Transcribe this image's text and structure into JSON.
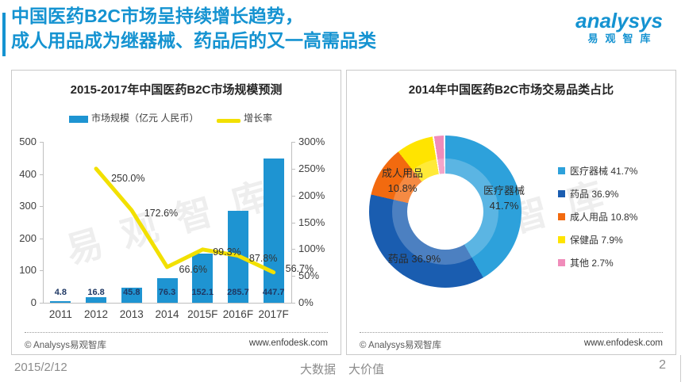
{
  "slide": {
    "header": {
      "title_line1": "中国医药B2C市场呈持续增长趋势，",
      "title_line2": "成人用品成为继器械、药品后的又一高需品类",
      "logo": {
        "brand": "analysys",
        "tagline": "易观智库"
      }
    },
    "footer": {
      "date": "2015/2/12",
      "slogan_left": "大数据",
      "slogan_right": "大价值",
      "page_number": "2"
    }
  },
  "left_card": {
    "watermark": "易观智库",
    "copyright": "© Analysys易观智库",
    "website": "www.enfodesk.com"
  },
  "right_card": {
    "watermark": "易观智库",
    "copyright": "© Analysys易观智库",
    "website": "www.enfodesk.com"
  },
  "colors": {
    "accent_blue": "#1593D1",
    "bar_blue": "#1E94D2",
    "line_yellow": "#F2E000",
    "pie_light_blue": "#2DA1DB",
    "pie_dark_blue": "#1A5DB0",
    "pie_orange": "#F26A0F",
    "pie_yellow": "#FFE400",
    "pie_pink": "#F08CBA",
    "axis_gray": "#BFBFBF"
  },
  "chart_data": [
    {
      "type": "bar",
      "title": "2015-2017年中国医药B2C市场规模预测",
      "categories": [
        "2011",
        "2012",
        "2013",
        "2014",
        "2015F",
        "2016F",
        "2017F"
      ],
      "series": [
        {
          "name": "市场规模（亿元 人民币）",
          "type": "bar",
          "axis": "left",
          "color": "#1E94D2",
          "values": [
            4.8,
            16.8,
            45.8,
            76.3,
            152.1,
            285.7,
            447.7
          ]
        },
        {
          "name": "增长率",
          "type": "line",
          "axis": "right",
          "color": "#F2E000",
          "unit": "%",
          "values": [
            null,
            250.0,
            172.6,
            66.6,
            99.3,
            87.8,
            56.7
          ]
        }
      ],
      "y_left": {
        "min": 0,
        "max": 500,
        "ticks": [
          0,
          100,
          200,
          300,
          400,
          500
        ]
      },
      "y_right": {
        "min": 0,
        "max": 300,
        "ticks": [
          "0%",
          "50%",
          "100%",
          "150%",
          "200%",
          "250%",
          "300%"
        ]
      },
      "legend_position": "top",
      "grid": false
    },
    {
      "type": "pie",
      "subtype": "donut",
      "title": "2014年中国医药B2C市场交易品类占比",
      "slices": [
        {
          "label": "医疗器械",
          "value": 41.7,
          "color": "#2DA1DB"
        },
        {
          "label": "药品",
          "value": 36.9,
          "color": "#1A5DB0"
        },
        {
          "label": "成人用品",
          "value": 10.8,
          "color": "#F26A0F"
        },
        {
          "label": "保健品",
          "value": 7.9,
          "color": "#FFE400"
        },
        {
          "label": "其他",
          "value": 2.7,
          "color": "#F08CBA"
        }
      ],
      "legend_position": "right",
      "legend_format": "{label} {value}%"
    }
  ]
}
